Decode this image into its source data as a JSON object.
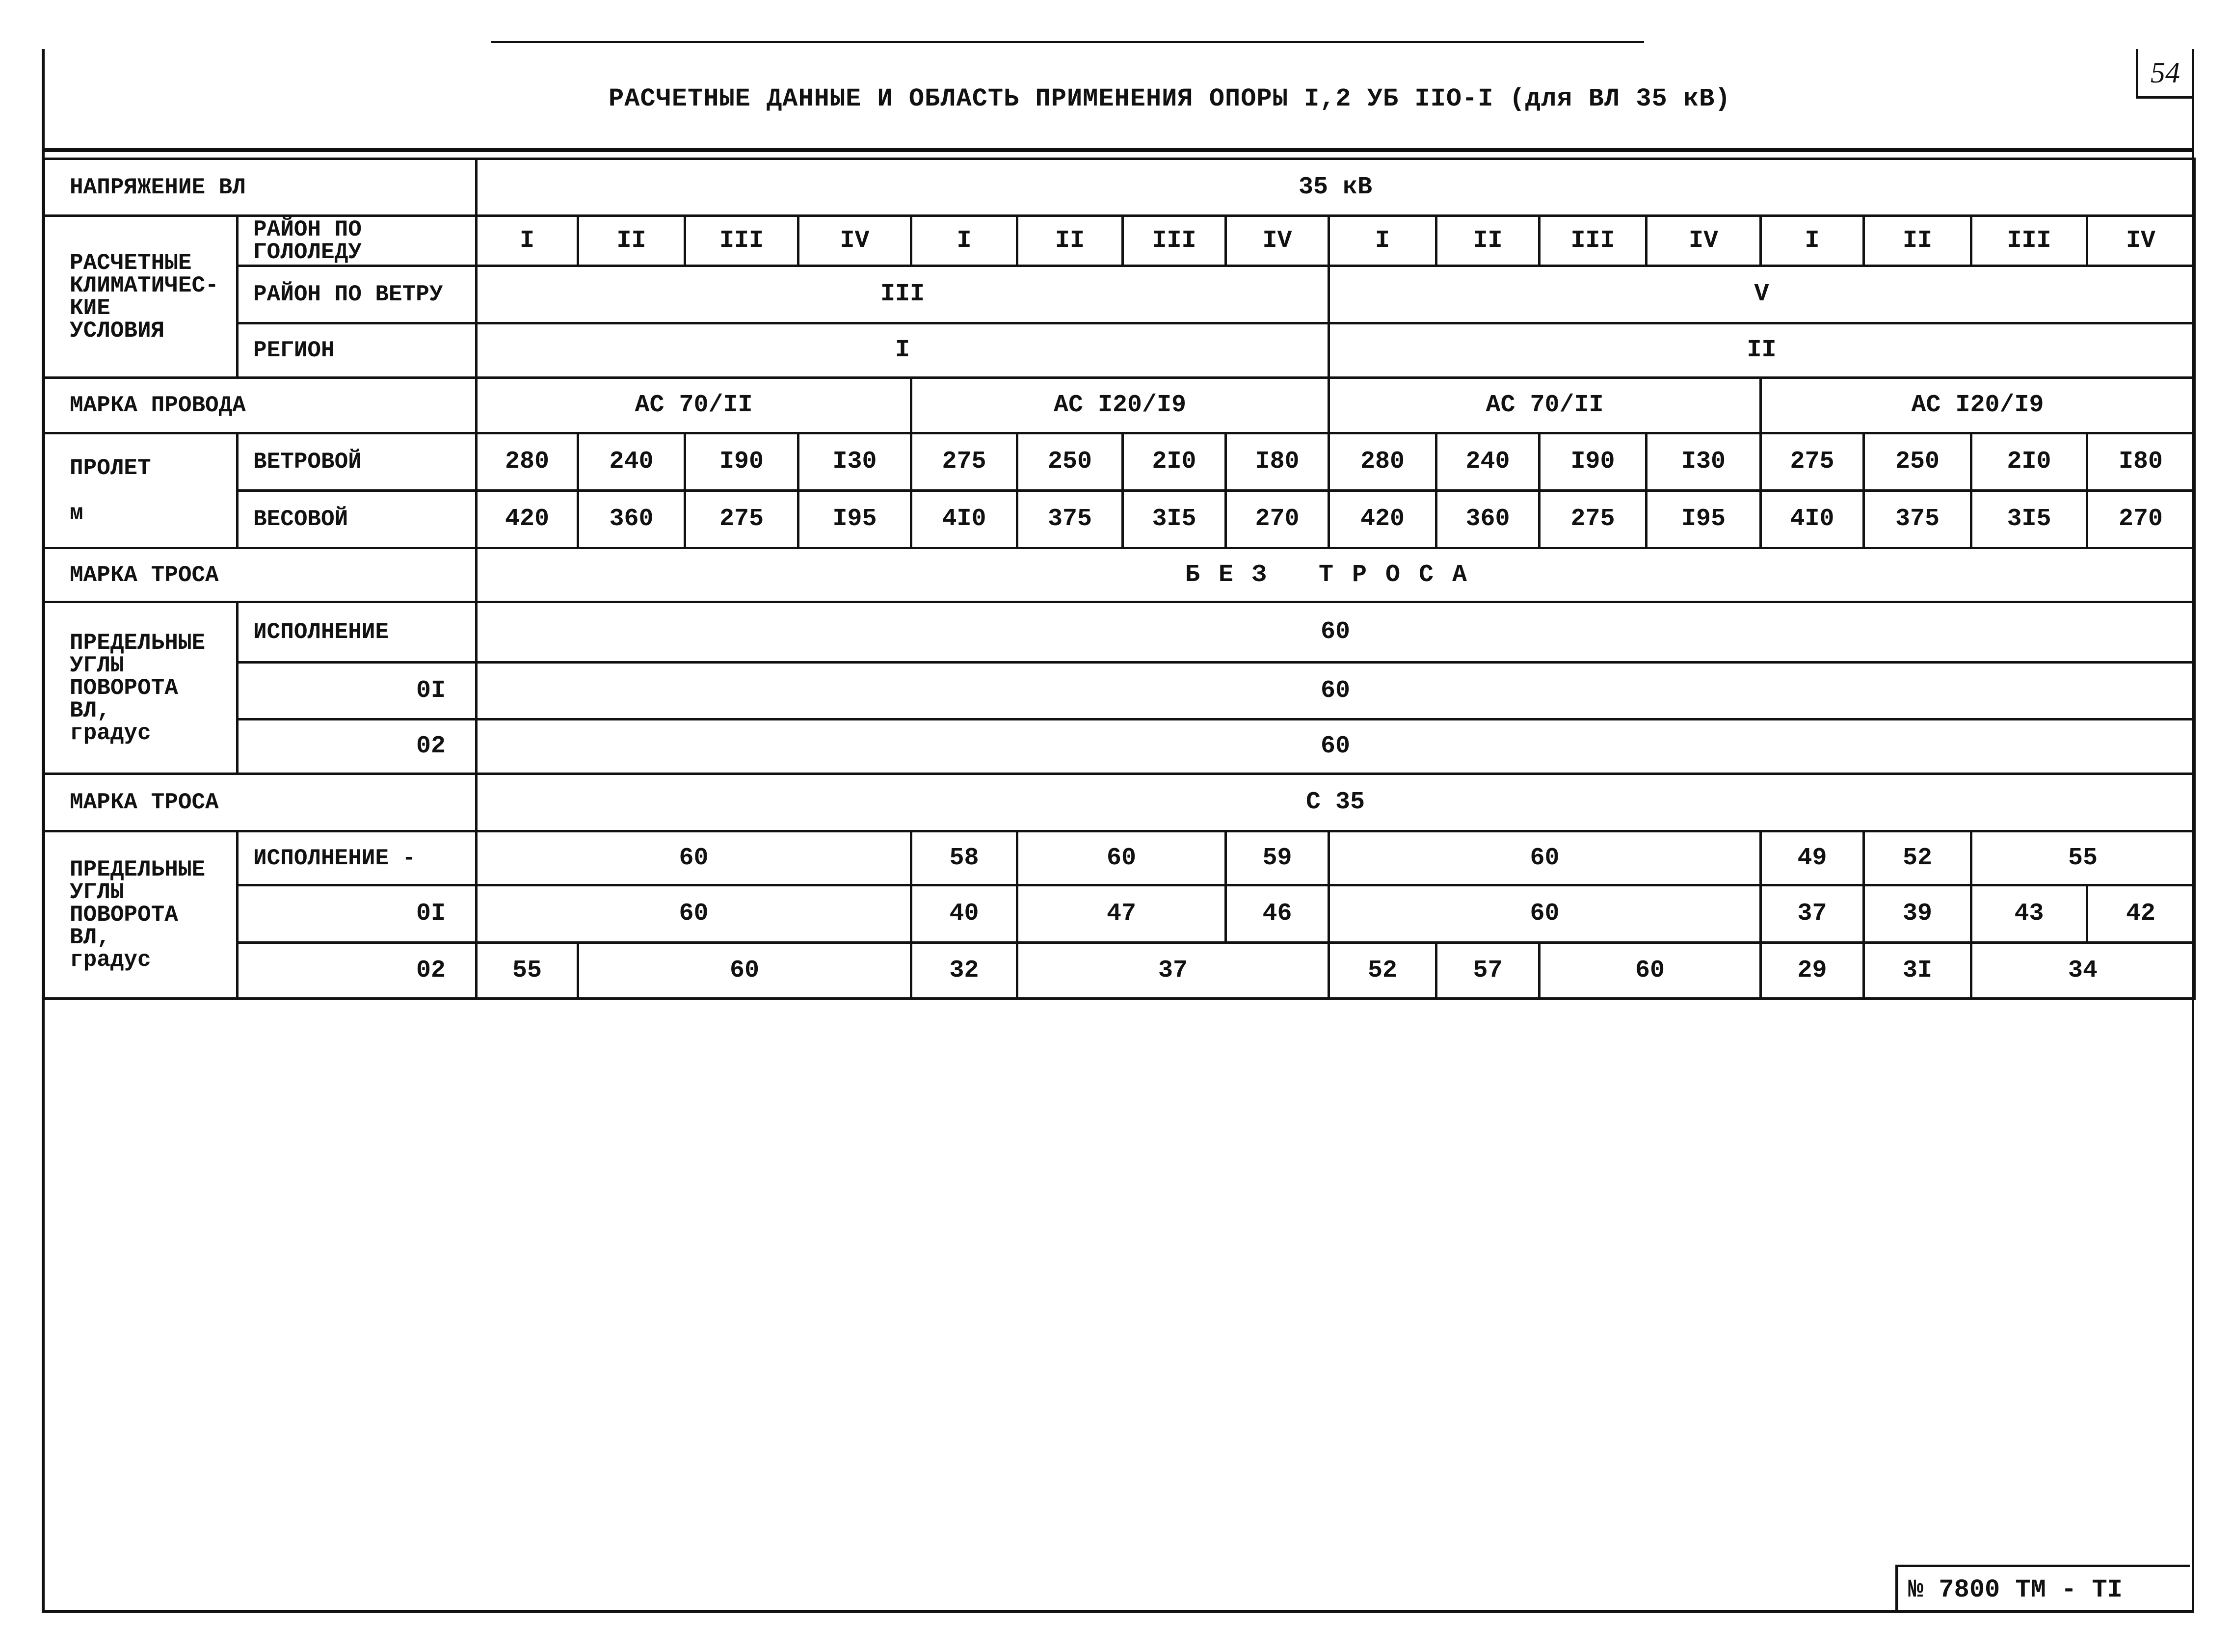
{
  "document": {
    "title": "РАСЧЕТНЫЕ ДАННЫЕ И ОБЛАСТЬ ПРИМЕНЕНИЯ ОПОРЫ I,2 УБ IIО-I (для ВЛ 35 кВ)",
    "page_number": "54",
    "stamp": "№ 7800 ТМ - ТI"
  },
  "table": {
    "rows": [
      {
        "name": "row-voltage",
        "cells": [
          {
            "text": "НАПРЯЖЕНИЕ ВЛ",
            "span": 2,
            "cls": "lbl"
          },
          {
            "text": "35 кВ",
            "span": 16
          }
        ]
      },
      {
        "name": "row-ice-district",
        "cells": [
          {
            "text": "РАСЧЕТНЫЕ\nКЛИМАТИЧЕС-\nКИЕ\nУСЛОВИЯ",
            "rowspan": 3,
            "cls": "lbl"
          },
          {
            "text": "РАЙОН ПО\nГОЛОЛЕДУ",
            "cls": "sub"
          },
          {
            "text": "I"
          },
          {
            "text": "II"
          },
          {
            "text": "III"
          },
          {
            "text": "IV"
          },
          {
            "text": "I"
          },
          {
            "text": "II"
          },
          {
            "text": "III"
          },
          {
            "text": "IV"
          },
          {
            "text": "I"
          },
          {
            "text": "II"
          },
          {
            "text": "III"
          },
          {
            "text": "IV"
          },
          {
            "text": "I"
          },
          {
            "text": "II"
          },
          {
            "text": "III"
          },
          {
            "text": "IV"
          }
        ]
      },
      {
        "name": "row-wind-district",
        "cells": [
          {
            "text": "РАЙОН ПО ВЕТРУ",
            "cls": "sub"
          },
          {
            "text": "III",
            "span": 8
          },
          {
            "text": "V",
            "span": 8
          }
        ]
      },
      {
        "name": "row-region",
        "cells": [
          {
            "text": "РЕГИОН",
            "cls": "sub"
          },
          {
            "text": "I",
            "span": 8
          },
          {
            "text": "II",
            "span": 8
          }
        ]
      },
      {
        "name": "row-wire-brand",
        "cells": [
          {
            "text": "МАРКА ПРОВОДА",
            "span": 2,
            "cls": "lbl"
          },
          {
            "text": "АС 70/II",
            "span": 4
          },
          {
            "text": "АС I20/I9",
            "span": 4
          },
          {
            "text": "АС 70/II",
            "span": 4
          },
          {
            "text": "АС I20/I9",
            "span": 4
          }
        ]
      },
      {
        "name": "row-span-wind",
        "cells": [
          {
            "text": "ПРОЛЕТ\n\n  м",
            "rowspan": 2,
            "cls": "lbl"
          },
          {
            "text": "ВЕТРОВОЙ",
            "cls": "sub"
          },
          {
            "text": "280"
          },
          {
            "text": "240"
          },
          {
            "text": "I90"
          },
          {
            "text": "I30"
          },
          {
            "text": "275"
          },
          {
            "text": "250"
          },
          {
            "text": "2I0"
          },
          {
            "text": "I80"
          },
          {
            "text": "280"
          },
          {
            "text": "240"
          },
          {
            "text": "I90"
          },
          {
            "text": "I30"
          },
          {
            "text": "275"
          },
          {
            "text": "250"
          },
          {
            "text": "2I0"
          },
          {
            "text": "I80"
          }
        ]
      },
      {
        "name": "row-span-weight",
        "cells": [
          {
            "text": "ВЕСОВОЙ",
            "cls": "sub"
          },
          {
            "text": "420"
          },
          {
            "text": "360"
          },
          {
            "text": "275"
          },
          {
            "text": "I95"
          },
          {
            "text": "4I0"
          },
          {
            "text": "375"
          },
          {
            "text": "3I5"
          },
          {
            "text": "270"
          },
          {
            "text": "420"
          },
          {
            "text": "360"
          },
          {
            "text": "275"
          },
          {
            "text": "I95"
          },
          {
            "text": "4I0"
          },
          {
            "text": "375"
          },
          {
            "text": "3I5"
          },
          {
            "text": "270"
          }
        ]
      },
      {
        "name": "row-cable-brand-1",
        "cells": [
          {
            "text": "МАРКА ТРОСА",
            "span": 2,
            "cls": "lbl"
          },
          {
            "text": "БЕЗ ТРОСА",
            "span": 16,
            "cls": "spaced"
          }
        ]
      },
      {
        "name": "row-angle-1-exec",
        "cells": [
          {
            "text": "ПРЕДЕЛЬНЫЕ\nУГЛЫ\nПОВОРОТА\nВЛ,\nградус",
            "rowspan": 3,
            "cls": "lbl"
          },
          {
            "text": "ИСПОЛНЕНИЕ",
            "cls": "sub"
          },
          {
            "text": "60",
            "span": 16
          }
        ]
      },
      {
        "name": "row-angle-1-01",
        "cells": [
          {
            "text": "0I",
            "cls": "num"
          },
          {
            "text": "60",
            "span": 16
          }
        ]
      },
      {
        "name": "row-angle-1-02",
        "cells": [
          {
            "text": "02",
            "cls": "num"
          },
          {
            "text": "60",
            "span": 16
          }
        ]
      },
      {
        "name": "row-cable-brand-2",
        "cells": [
          {
            "text": "МАРКА ТРОСА",
            "span": 2,
            "cls": "lbl"
          },
          {
            "text": "С 35",
            "span": 16
          }
        ]
      },
      {
        "name": "row-angle-2-exec",
        "cells": [
          {
            "text": "ПРЕДЕЛЬНЫЕ\nУГЛЫ\nПОВОРОТА\nВЛ,\nградус",
            "rowspan": 3,
            "cls": "lbl"
          },
          {
            "text": "ИСПОЛНЕНИЕ -",
            "cls": "sub"
          },
          {
            "text": "60",
            "span": 4
          },
          {
            "text": "58"
          },
          {
            "text": "60",
            "span": 2
          },
          {
            "text": "59"
          },
          {
            "text": "60",
            "span": 4
          },
          {
            "text": "49"
          },
          {
            "text": "52"
          },
          {
            "text": "55",
            "span": 2
          }
        ]
      },
      {
        "name": "row-angle-2-01",
        "cells": [
          {
            "text": "0I",
            "cls": "num"
          },
          {
            "text": "60",
            "span": 4
          },
          {
            "text": "40"
          },
          {
            "text": "47",
            "span": 2
          },
          {
            "text": "46"
          },
          {
            "text": "60",
            "span": 4
          },
          {
            "text": "37"
          },
          {
            "text": "39"
          },
          {
            "text": "43"
          },
          {
            "text": "42"
          }
        ]
      },
      {
        "name": "row-angle-2-02",
        "cells": [
          {
            "text": "02",
            "cls": "num"
          },
          {
            "text": "55"
          },
          {
            "text": "60",
            "span": 3
          },
          {
            "text": "32"
          },
          {
            "text": "37",
            "span": 3
          },
          {
            "text": "52"
          },
          {
            "text": "57"
          },
          {
            "text": "60",
            "span": 2
          },
          {
            "text": "29"
          },
          {
            "text": "3I"
          },
          {
            "text": "34",
            "span": 2
          }
        ]
      }
    ]
  }
}
